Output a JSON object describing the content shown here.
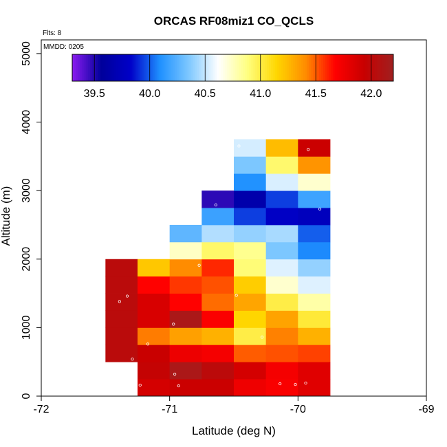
{
  "chart_data": {
    "type": "heatmap",
    "title": "ORCAS RF08miz1 CO_QCLS",
    "corner_labels": {
      "flights": "Flts: 8",
      "date": "MMDD: 0205"
    },
    "xlabel": "Latitude (deg N)",
    "ylabel": "Altitude (m)",
    "xlim": [
      -72,
      -69
    ],
    "ylim": [
      0,
      5200
    ],
    "x_ticks": [
      -72,
      -71,
      -70,
      -69
    ],
    "x_tick_labels": [
      "-72",
      "-71",
      "-70",
      "-69"
    ],
    "y_ticks": [
      0,
      1000,
      2000,
      3000,
      4000,
      5000
    ],
    "y_tick_labels": [
      "0",
      "1000",
      "2000",
      "3000",
      "4000",
      "5000"
    ],
    "colorbar": {
      "min": 39.3,
      "max": 42.2,
      "ticks": [
        39.5,
        40.0,
        40.5,
        41.0,
        41.5,
        42.0
      ],
      "tick_labels": [
        "39.5",
        "40.0",
        "40.5",
        "41.0",
        "41.5",
        "42.0"
      ],
      "stops": [
        "#8b1cf0",
        "#00009b",
        "#0000c8",
        "#1e90ff",
        "#7ec8ff",
        "#ffffff",
        "#ffff80",
        "#ffd700",
        "#ff8c00",
        "#ff0000",
        "#c80000",
        "#a02020"
      ]
    },
    "cell": {
      "width_deg": 0.25,
      "height_m": 250
    },
    "columns": [
      {
        "lat": -71.375,
        "values": [
          null,
          null,
          42.03,
          42.03,
          42.03,
          42.03,
          42.03,
          42.03
        ]
      },
      {
        "lat": -71.125,
        "values": [
          41.88,
          41.96,
          41.93,
          41.44,
          41.86,
          41.86,
          41.67,
          41.2,
          null,
          null,
          null,
          null,
          null,
          null,
          null
        ]
      },
      {
        "lat": -70.875,
        "values": [
          41.92,
          42.13,
          41.76,
          41.34,
          42.13,
          41.67,
          41.57,
          41.41,
          40.74,
          40.27,
          null,
          null,
          null,
          null,
          null,
          null
        ]
      },
      {
        "lat": -70.625,
        "values": [
          41.92,
          42.02,
          41.72,
          41.28,
          41.69,
          41.47,
          41.52,
          41.6,
          40.93,
          40.46,
          40.17,
          39.48,
          null,
          null,
          null,
          null
        ]
      },
      {
        "lat": -70.375,
        "values": [
          41.75,
          41.88,
          41.5,
          41.0,
          41.15,
          41.32,
          41.18,
          40.9,
          40.85,
          40.4,
          39.94,
          39.66,
          40.1,
          40.35,
          40.53
        ]
      },
      {
        "lat": -70.125,
        "values": [
          41.7,
          41.72,
          41.52,
          41.43,
          41.33,
          41.0,
          40.72,
          40.55,
          40.35,
          40.44,
          39.81,
          39.94,
          40.54,
          40.92,
          41.24
        ]
      },
      {
        "lat": -69.875,
        "values": [
          41.82,
          41.82,
          41.55,
          41.28,
          41.03,
          40.8,
          40.55,
          40.4,
          40.08,
          40.0,
          39.76,
          40.18,
          40.72,
          41.38,
          41.92
        ]
      }
    ],
    "sample_points": [
      {
        "lat": -71.23,
        "alt": 160
      },
      {
        "lat": -70.96,
        "alt": 320
      },
      {
        "lat": -70.93,
        "alt": 150
      },
      {
        "lat": -71.17,
        "alt": 760
      },
      {
        "lat": -71.29,
        "alt": 540
      },
      {
        "lat": -71.39,
        "alt": 1380
      },
      {
        "lat": -71.33,
        "alt": 1460
      },
      {
        "lat": -70.97,
        "alt": 1050
      },
      {
        "lat": -70.77,
        "alt": 1910
      },
      {
        "lat": -70.48,
        "alt": 1470
      },
      {
        "lat": -70.28,
        "alt": 860
      },
      {
        "lat": -70.14,
        "alt": 180
      },
      {
        "lat": -70.02,
        "alt": 170
      },
      {
        "lat": -69.94,
        "alt": 190
      },
      {
        "lat": -70.64,
        "alt": 2790
      },
      {
        "lat": -69.83,
        "alt": 2730
      },
      {
        "lat": -70.46,
        "alt": 3650
      },
      {
        "lat": -69.92,
        "alt": 3600
      }
    ]
  }
}
